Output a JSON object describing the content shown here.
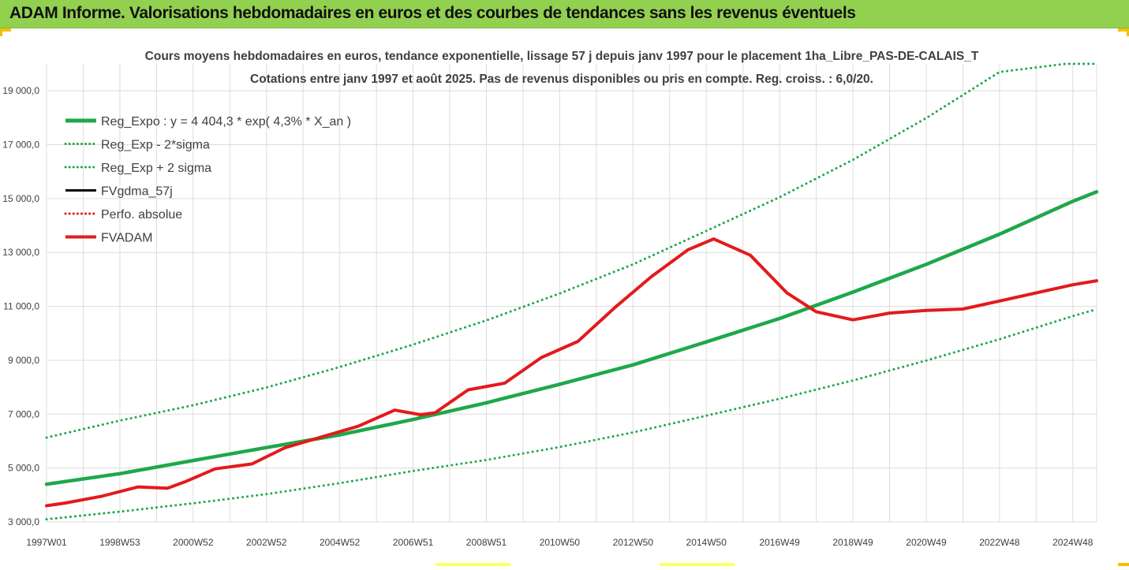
{
  "header": {
    "title": "ADAM Informe. Valorisations hebdomadaires en euros et des courbes de tendances sans les revenus éventuels"
  },
  "colors": {
    "banner": "#92d050",
    "reg_green": "#1ea84b",
    "adam_red": "#e31a1c",
    "grid": "#dcdcdc",
    "corner": "#f2c200"
  },
  "chart_data": {
    "type": "line",
    "title_lines": [
      "Cours moyens hebdomadaires en euros, tendance exponentielle, lissage 57 j depuis janv 1997  pour le placement 1ha_Libre_PAS-DE-CALAIS_T",
      "Cotations entre janv 1997 et août 2025.  Pas de revenus disponibles ou pris en compte. Reg. croiss. : 6,0/20."
    ],
    "xlabel": "",
    "ylabel": "",
    "xlim": [
      1997.0,
      2025.65
    ],
    "ylim": [
      3000,
      20000
    ],
    "x_ticks": [
      {
        "x": 1997.0,
        "label": "1997W01"
      },
      {
        "x": 1999.0,
        "label": "1998W53"
      },
      {
        "x": 2001.0,
        "label": "2000W52"
      },
      {
        "x": 2003.0,
        "label": "2002W52"
      },
      {
        "x": 2005.0,
        "label": "2004W52"
      },
      {
        "x": 2007.0,
        "label": "2006W51"
      },
      {
        "x": 2009.0,
        "label": "2008W51"
      },
      {
        "x": 2011.0,
        "label": "2010W50"
      },
      {
        "x": 2013.0,
        "label": "2012W50"
      },
      {
        "x": 2015.0,
        "label": "2014W50"
      },
      {
        "x": 2017.0,
        "label": "2016W49"
      },
      {
        "x": 2019.0,
        "label": "2018W49"
      },
      {
        "x": 2021.0,
        "label": "2020W49"
      },
      {
        "x": 2023.0,
        "label": "2022W48"
      },
      {
        "x": 2025.0,
        "label": "2024W48"
      }
    ],
    "y_ticks": [
      {
        "y": 3000,
        "label": "3 000,0"
      },
      {
        "y": 5000,
        "label": "5 000,0"
      },
      {
        "y": 7000,
        "label": "7 000,0"
      },
      {
        "y": 9000,
        "label": "9 000,0"
      },
      {
        "y": 11000,
        "label": "11 000,0"
      },
      {
        "y": 13000,
        "label": "13 000,0"
      },
      {
        "y": 15000,
        "label": "15 000,0"
      },
      {
        "y": 17000,
        "label": "17 000,0"
      },
      {
        "y": 19000,
        "label": "19 000,0"
      }
    ],
    "grid": true,
    "legend_position": "top-left",
    "legend": [
      {
        "label": "Reg_Expo : y = 4 404,3 * exp( 4,3% *  X_an )",
        "color": "#1ea84b",
        "style": "solid",
        "width": 5
      },
      {
        "label": "Reg_Exp - 2*sigma",
        "color": "#1ea84b",
        "style": "dotted",
        "width": 3
      },
      {
        "label": "Reg_Exp + 2 sigma",
        "color": "#1ea84b",
        "style": "dotted",
        "width": 3
      },
      {
        "label": "FVgdma_57j",
        "color": "#000000",
        "style": "solid",
        "width": 3
      },
      {
        "label": "Perfo. absolue",
        "color": "#e31a1c",
        "style": "dotted",
        "width": 3
      },
      {
        "label": "FVADAM",
        "color": "#e31a1c",
        "style": "solid",
        "width": 4
      }
    ],
    "series": [
      {
        "name": "Reg_Expo : y = 4 404,3 * exp( 4,3% *  X_an )",
        "color": "#1ea84b",
        "style": "solid",
        "width": 4.5,
        "x": [
          1997,
          1999,
          2001,
          2003,
          2005,
          2007,
          2009,
          2011,
          2013,
          2015,
          2017,
          2019,
          2021,
          2023,
          2025,
          2025.65
        ],
        "y": [
          4400,
          4790,
          5280,
          5760,
          6230,
          6800,
          7420,
          8110,
          8830,
          9680,
          10550,
          11530,
          12560,
          13680,
          14900,
          15250
        ]
      },
      {
        "name": "Reg_Exp - 2*sigma",
        "color": "#1ea84b",
        "style": "dotted",
        "width": 3,
        "x": [
          1997,
          1999,
          2001,
          2003,
          2005,
          2007,
          2009,
          2011,
          2013,
          2015,
          2017,
          2019,
          2021,
          2023,
          2025,
          2025.65
        ],
        "y": [
          3100,
          3380,
          3690,
          4030,
          4440,
          4890,
          5300,
          5780,
          6320,
          6940,
          7570,
          8250,
          8990,
          9780,
          10640,
          10890
        ]
      },
      {
        "name": "Reg_Exp + 2 sigma",
        "color": "#1ea84b",
        "style": "dotted",
        "width": 3,
        "x": [
          1997,
          1999,
          2001,
          2003,
          2005,
          2007,
          2009,
          2011,
          2013,
          2015,
          2017,
          2019,
          2021,
          2023,
          2024.8,
          2025.65
        ],
        "y": [
          6130,
          6760,
          7330,
          7990,
          8750,
          9580,
          10480,
          11480,
          12560,
          13800,
          15050,
          16440,
          17990,
          19700,
          20000,
          20000
        ]
      },
      {
        "name": "FVADAM",
        "color": "#e31a1c",
        "style": "solid",
        "width": 4,
        "x": [
          1997,
          1997.5,
          1998.5,
          1999.5,
          2000.3,
          2000.8,
          2001.6,
          2002.6,
          2003.5,
          2004.5,
          2005.5,
          2006.5,
          2007.2,
          2007.6,
          2008.5,
          2009.5,
          2010.5,
          2011.5,
          2012.5,
          2013.5,
          2014.5,
          2015.2,
          2016.2,
          2017.2,
          2018.0,
          2019.0,
          2020.0,
          2021.0,
          2022.0,
          2023.0,
          2024.0,
          2025.0,
          2025.65
        ],
        "y": [
          3600,
          3700,
          3950,
          4300,
          4250,
          4500,
          4970,
          5150,
          5750,
          6150,
          6550,
          7150,
          6980,
          7050,
          7900,
          8150,
          9100,
          9700,
          10950,
          12100,
          13100,
          13500,
          12900,
          11500,
          10800,
          10500,
          10750,
          10850,
          10900,
          11200,
          11500,
          11800,
          11950
        ]
      }
    ]
  }
}
